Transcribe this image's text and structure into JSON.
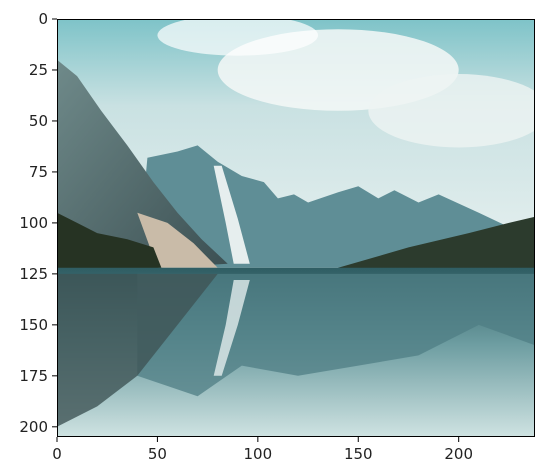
{
  "chart_data": {
    "type": "image",
    "xlim": [
      0,
      238
    ],
    "ylim": [
      205,
      0
    ],
    "x_ticks": [
      0,
      50,
      100,
      150,
      200
    ],
    "y_ticks": [
      0,
      25,
      50,
      75,
      100,
      125,
      150,
      175,
      200
    ],
    "x_tick_labels": [
      "0",
      "50",
      "100",
      "150",
      "200"
    ],
    "y_tick_labels": [
      "0",
      "25",
      "50",
      "75",
      "100",
      "125",
      "150",
      "175",
      "200"
    ],
    "image_content": "mountain-lake-reflection-photo",
    "grid": false
  }
}
